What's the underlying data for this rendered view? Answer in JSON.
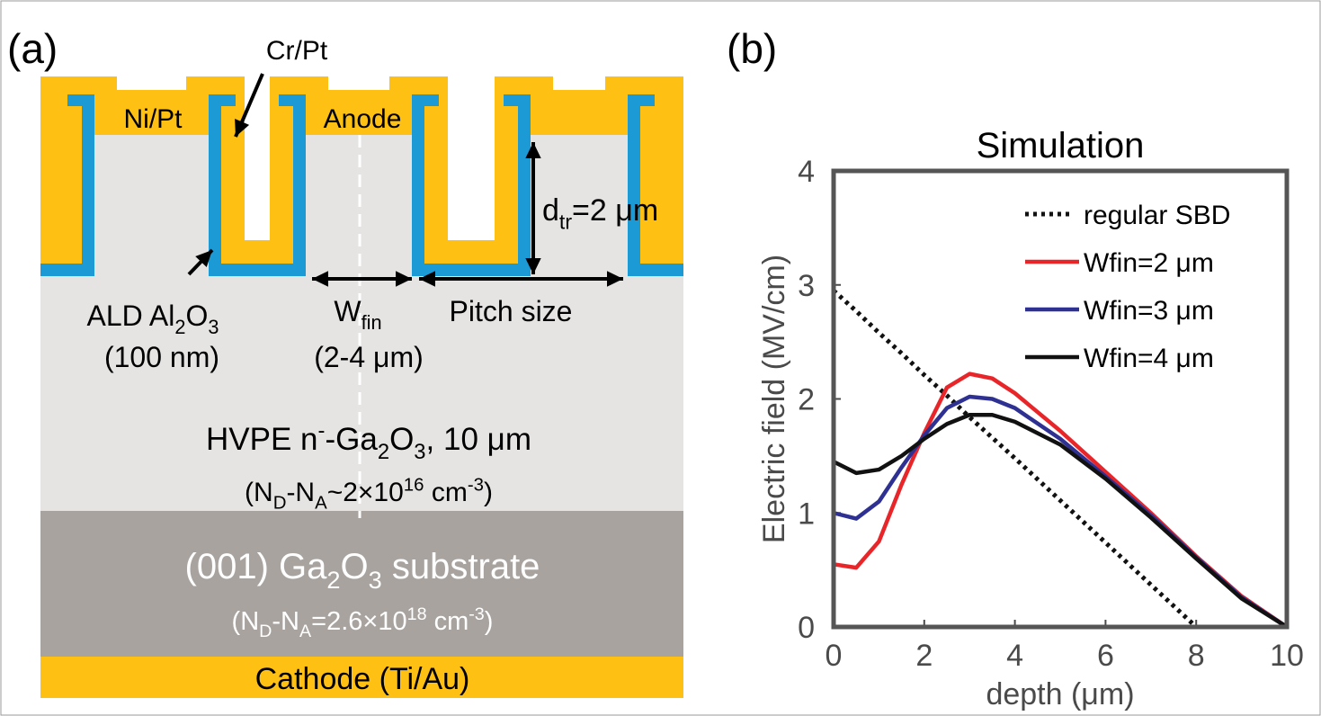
{
  "diagram": {
    "label": "(a)",
    "cr_pt": "Cr/Pt",
    "ni_pt": "Ni/Pt",
    "anode": "Anode",
    "d_tr": [
      "d",
      "tr",
      "=2 μm"
    ],
    "ald": [
      "ALD Al",
      "2",
      "O",
      "3"
    ],
    "ald_thickness": "(100 nm)",
    "w_fin": [
      "W",
      "fin"
    ],
    "w_fin_range": "(2-4 μm)",
    "pitch": "Pitch size",
    "drift": [
      "HVPE n",
      "-",
      "-Ga",
      "2",
      "O",
      "3",
      ", 10 μm"
    ],
    "drift_doping": [
      "(N",
      "D",
      "-N",
      "A",
      "~2×10",
      "16",
      " cm",
      "-3",
      ")"
    ],
    "substrate": [
      "(001) Ga",
      "2",
      "O",
      "3",
      " substrate"
    ],
    "substrate_doping": [
      "(N",
      "D",
      "-N",
      "A",
      "=2.6×10",
      "18",
      " cm",
      "-3",
      ")"
    ],
    "cathode": "Cathode (Ti/Au)"
  },
  "chart_data": {
    "type": "line",
    "panel_label": "(b)",
    "title": "Simulation",
    "x_label": "depth (μm)",
    "y_label": "Electric field (MV/cm)",
    "x": [
      0,
      0.5,
      1,
      1.5,
      2,
      2.5,
      3,
      3.5,
      4,
      5,
      6,
      7,
      8,
      9,
      10
    ],
    "series": [
      {
        "name": "regular SBD",
        "color": "#111111",
        "linestyle": "dotted",
        "values": [
          2.95,
          2.77,
          2.58,
          2.4,
          2.21,
          2.03,
          1.84,
          1.66,
          1.48,
          1.11,
          0.74,
          0.37,
          0,
          0,
          0
        ]
      },
      {
        "name": "Wfin=2 μm",
        "color": "#e8262a",
        "linestyle": "solid",
        "values": [
          0.55,
          0.52,
          0.75,
          1.25,
          1.7,
          2.1,
          2.22,
          2.18,
          2.05,
          1.72,
          1.36,
          1.0,
          0.62,
          0.27,
          0
        ]
      },
      {
        "name": "Wfin=3 μm",
        "color": "#2e3192",
        "linestyle": "solid",
        "values": [
          1.0,
          0.95,
          1.1,
          1.4,
          1.68,
          1.92,
          2.02,
          2.0,
          1.92,
          1.65,
          1.32,
          0.98,
          0.61,
          0.26,
          0
        ]
      },
      {
        "name": "Wfin=4 μm",
        "color": "#111111",
        "linestyle": "solid",
        "values": [
          1.45,
          1.35,
          1.38,
          1.5,
          1.65,
          1.78,
          1.86,
          1.86,
          1.8,
          1.6,
          1.3,
          0.96,
          0.6,
          0.25,
          0
        ]
      }
    ],
    "xlim": [
      0,
      10
    ],
    "xticks": [
      0,
      2,
      4,
      6,
      8,
      10
    ],
    "ylim": [
      0,
      4
    ],
    "yticks": [
      0,
      1,
      2,
      3,
      4
    ],
    "grid": false,
    "legend": "upper right"
  }
}
